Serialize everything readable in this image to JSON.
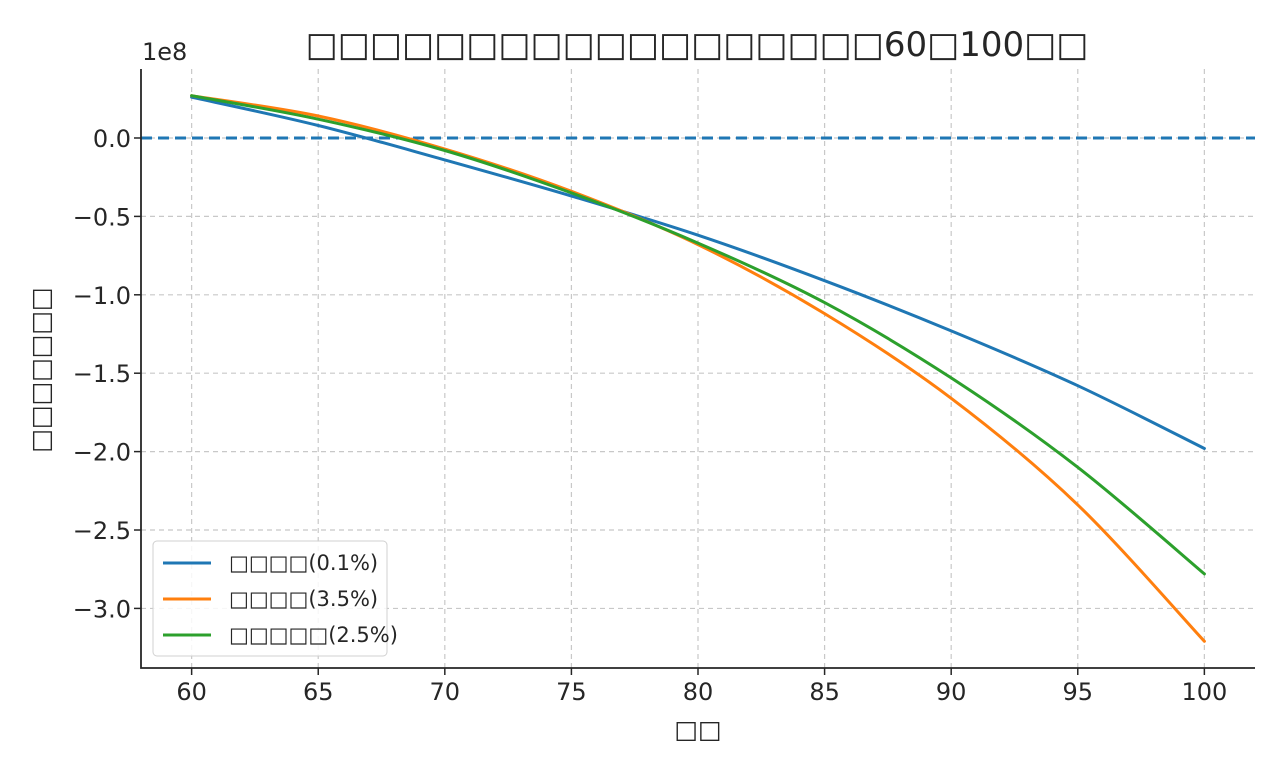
{
  "chart_data": {
    "type": "line",
    "title": "□□□□□□□□□□□□□□□□□□60□100□□",
    "xlabel": "□□",
    "ylabel": "□□□□□□□",
    "y_offset_label": "1e8",
    "xlim": [
      58,
      102
    ],
    "ylim": [
      -3.38,
      0.44
    ],
    "x_ticks": [
      60,
      65,
      70,
      75,
      80,
      85,
      90,
      95,
      100
    ],
    "x_tick_labels": [
      "60",
      "65",
      "70",
      "75",
      "80",
      "85",
      "90",
      "95",
      "100"
    ],
    "y_ticks": [
      0.0,
      -0.5,
      -1.0,
      -1.5,
      -2.0,
      -2.5,
      -3.0
    ],
    "y_tick_labels": [
      "0.0",
      "−0.5",
      "−1.0",
      "−1.5",
      "−2.0",
      "−2.5",
      "−3.0"
    ],
    "grid": true,
    "legend_position": "bottom-left",
    "reference_line": {
      "y": 0.0,
      "color": "#1f77b4",
      "style": "dashed"
    },
    "x": [
      60,
      65,
      70,
      75,
      80,
      85,
      90,
      95,
      100
    ],
    "series": [
      {
        "name": "□□□□(0.1%)",
        "color": "#1f77b4",
        "values": [
          0.26,
          0.08,
          -0.14,
          -0.37,
          -0.62,
          -0.91,
          -1.23,
          -1.58,
          -1.98
        ]
      },
      {
        "name": "□□□□(3.5%)",
        "color": "#ff7f0e",
        "values": [
          0.27,
          0.14,
          -0.07,
          -0.34,
          -0.68,
          -1.12,
          -1.66,
          -2.34,
          -3.21
        ]
      },
      {
        "name": "□□□□□(2.5%)",
        "color": "#2ca02c",
        "values": [
          0.27,
          0.12,
          -0.08,
          -0.35,
          -0.67,
          -1.05,
          -1.53,
          -2.1,
          -2.78
        ]
      }
    ]
  }
}
